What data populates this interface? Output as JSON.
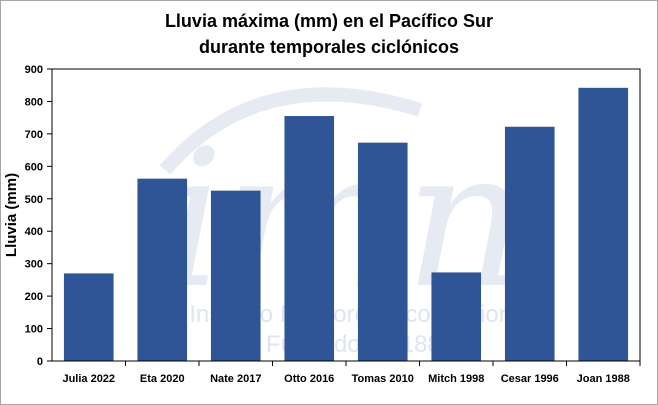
{
  "chart_data": {
    "type": "bar",
    "title_lines": [
      "Lluvia máxima (mm) en el Pacífico Sur",
      "durante temporales ciclónicos"
    ],
    "xlabel": "",
    "ylabel": "Lluvia (mm)",
    "categories": [
      "Julia 2022",
      "Eta 2020",
      "Nate 2017",
      "Otto 2016",
      "Tomas 2010",
      "Mitch 1998",
      "Cesar 1996",
      "Joan 1988"
    ],
    "values": [
      270,
      562,
      525,
      755,
      673,
      273,
      722,
      842
    ],
    "ylim": [
      0,
      900
    ],
    "yticks": [
      "0",
      "100",
      "200",
      "300",
      "400",
      "500",
      "600",
      "700",
      "800",
      "900"
    ],
    "grid": false,
    "legend": "none",
    "bar_color": "#2f5597"
  },
  "watermark": {
    "logo_text": "imn",
    "line1": "Instituto Meteorológico Nacional",
    "line2": "Fundado en 1888"
  }
}
